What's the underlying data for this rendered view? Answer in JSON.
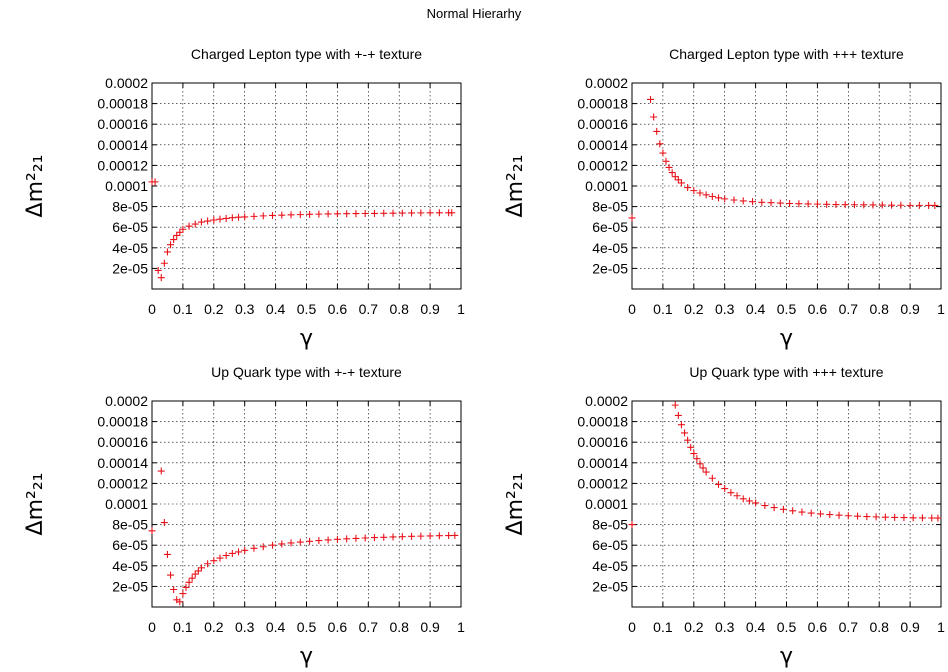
{
  "page_title": "Normal Hierarhy",
  "point_color": "#e8141b",
  "chart_data": [
    {
      "type": "scatter",
      "title": "Charged Lepton type with +-+ texture",
      "xlabel": "γ",
      "ylabel": "Δm²₂₁",
      "xlim": [
        0,
        1
      ],
      "ylim": [
        0,
        0.0002
      ],
      "grid": true,
      "xticks": [
        "0",
        "0.1",
        "0.2",
        "0.3",
        "0.4",
        "0.5",
        "0.6",
        "0.7",
        "0.8",
        "0.9",
        "1"
      ],
      "yticks": [
        "2e-05",
        "4e-05",
        "6e-05",
        "8e-05",
        "0.0001",
        "0.00012",
        "0.00014",
        "0.00016",
        "0.00018",
        "0.0002"
      ],
      "series": [
        {
          "x": [
            0.0,
            0.01,
            0.02,
            0.03,
            0.04,
            0.05,
            0.06,
            0.07,
            0.08,
            0.09,
            0.1,
            0.12,
            0.14,
            0.16,
            0.18,
            0.2,
            0.22,
            0.24,
            0.26,
            0.28,
            0.3,
            0.33,
            0.36,
            0.39,
            0.42,
            0.45,
            0.48,
            0.51,
            0.54,
            0.57,
            0.6,
            0.63,
            0.66,
            0.69,
            0.72,
            0.75,
            0.78,
            0.81,
            0.84,
            0.87,
            0.9,
            0.93,
            0.96,
            0.97
          ],
          "y": [
            0.000104,
            0.000104,
            1.8e-05,
            1.1e-05,
            2.5e-05,
            3.6e-05,
            4.3e-05,
            4.8e-05,
            5.2e-05,
            5.5e-05,
            5.8e-05,
            6.1e-05,
            6.3e-05,
            6.5e-05,
            6.6e-05,
            6.7e-05,
            6.78e-05,
            6.85e-05,
            6.92e-05,
            6.97e-05,
            7e-05,
            7.05e-05,
            7.1e-05,
            7.14e-05,
            7.17e-05,
            7.2e-05,
            7.22e-05,
            7.25e-05,
            7.27e-05,
            7.29e-05,
            7.3e-05,
            7.31e-05,
            7.32e-05,
            7.33e-05,
            7.34e-05,
            7.35e-05,
            7.36e-05,
            7.37e-05,
            7.38e-05,
            7.39e-05,
            7.4e-05,
            7.4e-05,
            7.4e-05,
            7.4e-05
          ]
        }
      ]
    },
    {
      "type": "scatter",
      "title": "Charged Lepton type with +++ texture",
      "xlabel": "γ",
      "ylabel": "Δm²₂₁",
      "xlim": [
        0,
        1
      ],
      "ylim": [
        0,
        0.0002
      ],
      "grid": true,
      "xticks": [
        "0",
        "0.1",
        "0.2",
        "0.3",
        "0.4",
        "0.5",
        "0.6",
        "0.7",
        "0.8",
        "0.9",
        "1"
      ],
      "yticks": [
        "2e-05",
        "4e-05",
        "6e-05",
        "8e-05",
        "0.0001",
        "0.00012",
        "0.00014",
        "0.00016",
        "0.00018",
        "0.0002"
      ],
      "series": [
        {
          "x": [
            0.0,
            0.06,
            0.07,
            0.08,
            0.09,
            0.1,
            0.11,
            0.12,
            0.13,
            0.14,
            0.15,
            0.16,
            0.18,
            0.2,
            0.22,
            0.24,
            0.26,
            0.28,
            0.3,
            0.33,
            0.36,
            0.39,
            0.42,
            0.45,
            0.48,
            0.51,
            0.54,
            0.57,
            0.6,
            0.63,
            0.66,
            0.69,
            0.72,
            0.75,
            0.78,
            0.81,
            0.84,
            0.87,
            0.9,
            0.93,
            0.96,
            0.98
          ],
          "y": [
            6.9e-05,
            0.000184,
            0.000167,
            0.000153,
            0.000141,
            0.000132,
            0.000124,
            0.000118,
            0.000113,
            0.000109,
            0.000106,
            0.000103,
            9.85e-05,
            9.55e-05,
            9.32e-05,
            9.14e-05,
            8.98e-05,
            8.85e-05,
            8.75e-05,
            8.64e-05,
            8.55e-05,
            8.48e-05,
            8.42e-05,
            8.38e-05,
            8.34e-05,
            8.3e-05,
            8.28e-05,
            8.26e-05,
            8.24e-05,
            8.22e-05,
            8.2e-05,
            8.19e-05,
            8.18e-05,
            8.17e-05,
            8.16e-05,
            8.15e-05,
            8.14e-05,
            8.13e-05,
            8.12e-05,
            8.12e-05,
            8.11e-05,
            8.11e-05
          ]
        }
      ]
    },
    {
      "type": "scatter",
      "title": "Up Quark type with +-+ texture",
      "xlabel": "γ",
      "ylabel": "Δm²₂₁",
      "xlim": [
        0,
        1
      ],
      "ylim": [
        0,
        0.0002
      ],
      "grid": true,
      "xticks": [
        "0",
        "0.1",
        "0.2",
        "0.3",
        "0.4",
        "0.5",
        "0.6",
        "0.7",
        "0.8",
        "0.9",
        "1"
      ],
      "yticks": [
        "2e-05",
        "4e-05",
        "6e-05",
        "8e-05",
        "0.0001",
        "0.00012",
        "0.00014",
        "0.00016",
        "0.00018",
        "0.0002"
      ],
      "series": [
        {
          "x": [
            0.0,
            0.03,
            0.04,
            0.05,
            0.06,
            0.07,
            0.08,
            0.09,
            0.1,
            0.11,
            0.12,
            0.13,
            0.14,
            0.15,
            0.16,
            0.18,
            0.2,
            0.22,
            0.24,
            0.26,
            0.28,
            0.3,
            0.33,
            0.36,
            0.39,
            0.42,
            0.45,
            0.48,
            0.51,
            0.54,
            0.57,
            0.6,
            0.63,
            0.66,
            0.69,
            0.72,
            0.75,
            0.78,
            0.81,
            0.84,
            0.87,
            0.9,
            0.93,
            0.96,
            0.98
          ],
          "y": [
            7.4e-05,
            0.000132,
            8.2e-05,
            5.1e-05,
            3.1e-05,
            1.7e-05,
            7e-06,
            5e-06,
            1.3e-05,
            1.9e-05,
            2.4e-05,
            2.8e-05,
            3.2e-05,
            3.5e-05,
            3.8e-05,
            4.2e-05,
            4.5e-05,
            4.75e-05,
            5e-05,
            5.2e-05,
            5.35e-05,
            5.5e-05,
            5.7e-05,
            5.85e-05,
            6e-05,
            6.12e-05,
            6.22e-05,
            6.3e-05,
            6.38e-05,
            6.45e-05,
            6.51e-05,
            6.57e-05,
            6.62e-05,
            6.66e-05,
            6.7e-05,
            6.74e-05,
            6.77e-05,
            6.8e-05,
            6.83e-05,
            6.86e-05,
            6.88e-05,
            6.9e-05,
            6.92e-05,
            6.94e-05,
            6.95e-05
          ]
        }
      ]
    },
    {
      "type": "scatter",
      "title": "Up Quark type with +++ texture",
      "xlabel": "γ",
      "ylabel": "Δm²₂₁",
      "xlim": [
        0,
        1
      ],
      "ylim": [
        0,
        0.0002
      ],
      "grid": true,
      "xticks": [
        "0",
        "0.1",
        "0.2",
        "0.3",
        "0.4",
        "0.5",
        "0.6",
        "0.7",
        "0.8",
        "0.9",
        "1"
      ],
      "yticks": [
        "2e-05",
        "4e-05",
        "6e-05",
        "8e-05",
        "0.0001",
        "0.00012",
        "0.00014",
        "0.00016",
        "0.00018",
        "0.0002"
      ],
      "series": [
        {
          "x": [
            0.0,
            0.14,
            0.15,
            0.16,
            0.17,
            0.18,
            0.19,
            0.2,
            0.21,
            0.22,
            0.23,
            0.24,
            0.26,
            0.28,
            0.3,
            0.32,
            0.34,
            0.36,
            0.38,
            0.4,
            0.43,
            0.46,
            0.49,
            0.52,
            0.55,
            0.58,
            0.61,
            0.64,
            0.67,
            0.7,
            0.73,
            0.76,
            0.79,
            0.82,
            0.85,
            0.88,
            0.91,
            0.94,
            0.97,
            0.99
          ],
          "y": [
            8e-05,
            0.000196,
            0.000186,
            0.000177,
            0.000169,
            0.000162,
            0.000155,
            0.000149,
            0.000144,
            0.000139,
            0.000135,
            0.000131,
            0.000125,
            0.000119,
            0.000115,
            0.000111,
            0.000108,
            0.000105,
            0.000103,
            0.000101,
            9.85e-05,
            9.65e-05,
            9.48e-05,
            9.34e-05,
            9.22e-05,
            9.12e-05,
            9.04e-05,
            8.97e-05,
            8.91e-05,
            8.86e-05,
            8.82e-05,
            8.78e-05,
            8.75e-05,
            8.72e-05,
            8.7e-05,
            8.68e-05,
            8.66e-05,
            8.65e-05,
            8.64e-05,
            8.63e-05
          ]
        }
      ]
    }
  ]
}
